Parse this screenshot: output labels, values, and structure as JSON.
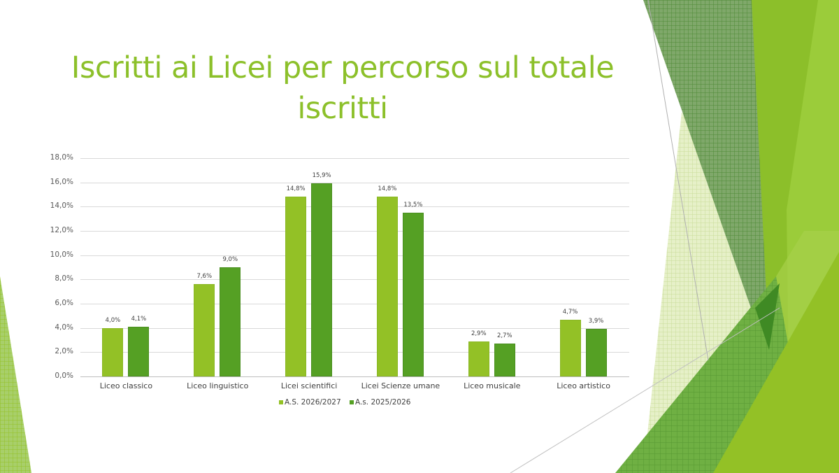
{
  "slide": {
    "title": "Iscritti ai Licei per percorso sul totale iscritti",
    "title_line1": "Iscritti ai Licei per percorso sul totale",
    "title_line2": "iscritti",
    "accent_color": "#8cc02a"
  },
  "chart_data": {
    "type": "bar",
    "title": "Iscritti ai Licei per percorso sul totale iscritti",
    "xlabel": "",
    "ylabel": "",
    "ylim": [
      0,
      18
    ],
    "y_ticks": [
      "0,0%",
      "2,0%",
      "4,0%",
      "6,0%",
      "8,0%",
      "10,0%",
      "12,0%",
      "14,0%",
      "16,0%",
      "18,0%"
    ],
    "grid": true,
    "legend_position": "bottom",
    "categories": [
      "Liceo classico",
      "Liceo linguistico",
      "Licei scientifici",
      "Licei Scienze umane",
      "Liceo musicale",
      "Liceo artistico"
    ],
    "series": [
      {
        "name": "A.S. 2026/2027",
        "color": "#93c126",
        "values": [
          4.0,
          7.6,
          14.8,
          14.8,
          2.9,
          4.7
        ],
        "labels": [
          "4,0%",
          "7,6%",
          "14,8%",
          "14,8%",
          "2,9%",
          "4,7%"
        ]
      },
      {
        "name": "A.s. 2025/2026",
        "color": "#55a024",
        "values": [
          4.1,
          9.0,
          15.9,
          13.5,
          2.7,
          3.9
        ],
        "labels": [
          "4,1%",
          "9,0%",
          "15,9%",
          "13,5%",
          "2,7%",
          "3,9%"
        ]
      }
    ]
  }
}
